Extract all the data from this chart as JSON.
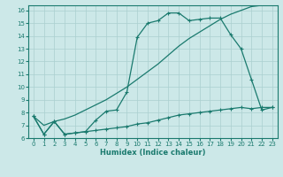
{
  "xlabel": "Humidex (Indice chaleur)",
  "xlim": [
    -0.5,
    23.5
  ],
  "ylim": [
    6,
    16.4
  ],
  "yticks": [
    6,
    7,
    8,
    9,
    10,
    11,
    12,
    13,
    14,
    15,
    16
  ],
  "xticks": [
    0,
    1,
    2,
    3,
    4,
    5,
    6,
    7,
    8,
    9,
    10,
    11,
    12,
    13,
    14,
    15,
    16,
    17,
    18,
    19,
    20,
    21,
    22,
    23
  ],
  "bg_color": "#cce8e8",
  "grid_color": "#aacfcf",
  "line_color": "#1a7a6e",
  "line1_x": [
    0,
    1,
    2,
    3,
    4,
    5,
    6,
    7,
    8,
    9,
    10,
    11,
    12,
    13,
    14,
    15,
    16,
    17,
    18,
    19,
    20,
    21,
    22,
    23
  ],
  "line1_y": [
    7.7,
    6.3,
    7.3,
    6.3,
    6.4,
    6.5,
    7.4,
    8.1,
    8.2,
    9.6,
    13.9,
    15.0,
    15.2,
    15.8,
    15.8,
    15.2,
    15.3,
    15.4,
    15.4,
    14.1,
    13.0,
    10.6,
    8.2,
    8.4
  ],
  "line2_x": [
    0,
    1,
    2,
    3,
    4,
    5,
    6,
    7,
    8,
    9,
    10,
    11,
    12,
    13,
    14,
    15,
    16,
    17,
    18,
    19,
    20,
    21,
    22
  ],
  "line2_y": [
    7.7,
    7.0,
    7.3,
    7.5,
    7.8,
    8.2,
    8.6,
    9.0,
    9.5,
    10.0,
    10.6,
    11.2,
    11.8,
    12.5,
    13.2,
    13.8,
    14.3,
    14.8,
    15.3,
    15.7,
    16.0,
    16.3,
    16.4
  ],
  "line3_x": [
    0,
    1,
    2,
    3,
    4,
    5,
    6,
    7,
    8,
    9,
    10,
    11,
    12,
    13,
    14,
    15,
    16,
    17,
    18,
    19,
    20,
    21,
    22,
    23
  ],
  "line3_y": [
    7.7,
    6.3,
    7.3,
    6.3,
    6.4,
    6.5,
    6.6,
    6.7,
    6.8,
    6.9,
    7.1,
    7.2,
    7.4,
    7.6,
    7.8,
    7.9,
    8.0,
    8.1,
    8.2,
    8.3,
    8.4,
    8.3,
    8.4,
    8.4
  ]
}
